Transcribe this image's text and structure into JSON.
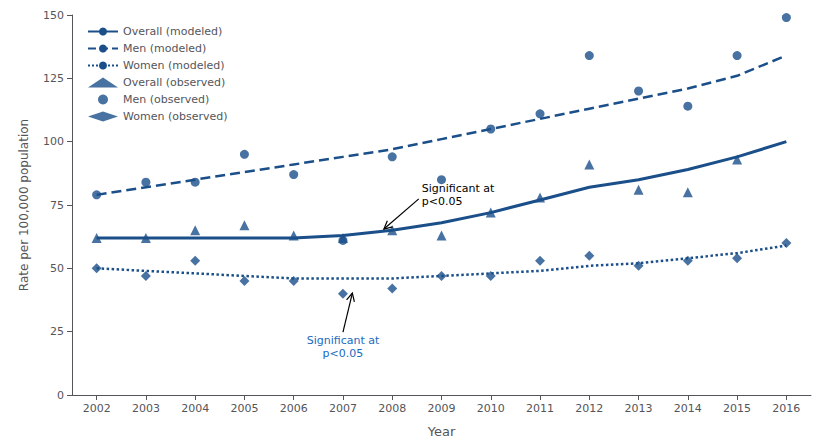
{
  "chart_data": {
    "type": "line",
    "xlabel": "Year",
    "ylabel": "Rate per 100,000 population",
    "x": [
      2002,
      2003,
      2004,
      2005,
      2006,
      2007,
      2008,
      2009,
      2010,
      2011,
      2012,
      2013,
      2014,
      2015,
      2016
    ],
    "xlim": [
      2001.5,
      2016.5
    ],
    "xticks": [
      2002,
      2003,
      2004,
      2005,
      2006,
      2007,
      2008,
      2009,
      2010,
      2011,
      2012,
      2013,
      2014,
      2015,
      2016
    ],
    "ylim": [
      0,
      150
    ],
    "yticks": [
      0,
      25,
      50,
      75,
      100,
      125,
      150
    ],
    "grid": false,
    "legend": "upper left",
    "series": [
      {
        "name": "Overall (modeled)",
        "type": "line",
        "color": "#1a4f8a",
        "line_style": "solid",
        "marker": "none",
        "values": [
          62,
          62,
          62,
          62,
          62,
          63,
          65,
          68,
          72,
          77,
          82,
          85,
          89,
          94,
          100
        ]
      },
      {
        "name": "Men (modeled)",
        "type": "line",
        "color": "#1a4f8a",
        "line_style": "dashed",
        "marker": "none",
        "values": [
          79,
          82,
          85,
          88,
          91,
          94,
          97,
          101,
          105,
          109,
          113,
          117,
          121,
          126,
          134
        ]
      },
      {
        "name": "Women (modeled)",
        "type": "line",
        "color": "#1a4f8a",
        "line_style": "dotted",
        "marker": "none",
        "values": [
          50,
          49,
          48,
          47,
          46,
          46,
          46,
          47,
          48,
          49,
          51,
          52,
          54,
          56,
          59
        ]
      },
      {
        "name": "Overall (observed)",
        "type": "scatter",
        "color": "#1a4f8a",
        "marker": "triangle",
        "values": [
          62,
          62,
          65,
          67,
          63,
          62,
          65,
          63,
          72,
          78,
          91,
          81,
          80,
          93,
          null
        ]
      },
      {
        "name": "Men (observed)",
        "type": "scatter",
        "color": "#1a4f8a",
        "marker": "circle",
        "values": [
          79,
          84,
          84,
          95,
          87,
          61,
          94,
          85,
          105,
          111,
          134,
          120,
          114,
          134,
          149
        ]
      },
      {
        "name": "Women (observed)",
        "type": "scatter",
        "color": "#1a4f8a",
        "marker": "diamond",
        "values": [
          50,
          47,
          53,
          45,
          45,
          40,
          42,
          47,
          47,
          53,
          55,
          51,
          53,
          54,
          60
        ]
      }
    ],
    "annotations": [
      {
        "text": "Significant at\np<0.05",
        "x": 2007.8,
        "y": 65,
        "text_x": 2008.6,
        "text_y": 79,
        "color": "#000000"
      },
      {
        "text": "Significant at\np<0.05",
        "x": 2007.2,
        "y": 41,
        "text_x": 2007.0,
        "text_y": 24,
        "color": "#1a6abf"
      }
    ]
  }
}
